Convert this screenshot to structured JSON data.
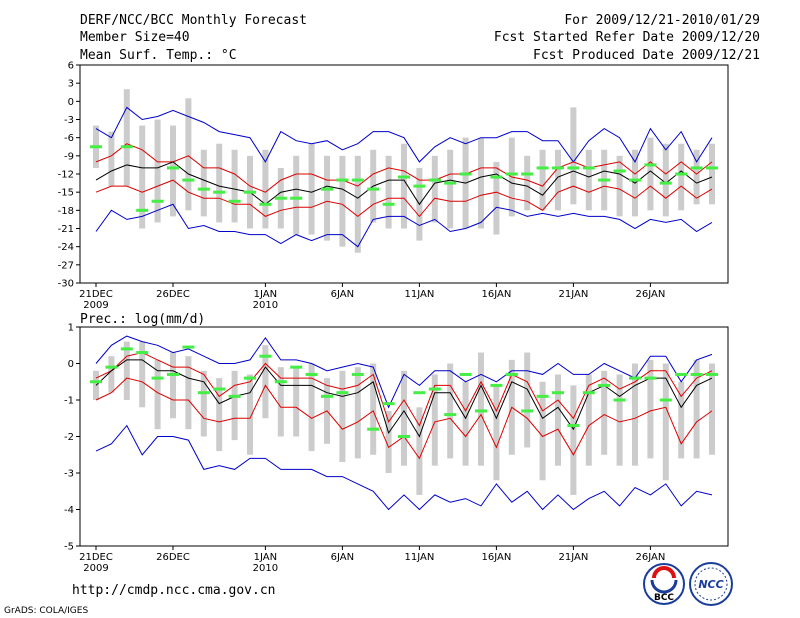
{
  "header": {
    "title": "DERF/NCC/BCC Monthly Forecast",
    "member_size": "Member Size=40",
    "variable": "Mean Surf. Temp.: °C",
    "period": "For 2009/12/21-2010/01/29",
    "started": "Fcst Started Refer Date 2009/12/20",
    "produced": "Fcst Produced Date 2009/12/21"
  },
  "footer": {
    "url": "http://cmdp.ncc.cma.gov.cn",
    "credit": "GrADS: COLA/IGES",
    "logo1_text": "BCC",
    "logo2_text": "NCC"
  },
  "colors": {
    "envelope": "#0000cc",
    "spread": "#dd0000",
    "mean": "#000000",
    "observed": "#44ee44",
    "range_bar": "#cccccc"
  },
  "chart_data": [
    {
      "type": "line",
      "name": "temperature",
      "ylabel": "Mean Surf. Temp.: °C",
      "ylim": [
        -30,
        6
      ],
      "yticks": [
        6,
        3,
        0,
        -3,
        -6,
        -9,
        -12,
        -15,
        -18,
        -21,
        -24,
        -27,
        -30
      ],
      "xtick_labels": [
        {
          "day": 0,
          "label": "21DEC",
          "sub": "2009"
        },
        {
          "day": 5,
          "label": "26DEC",
          "sub": ""
        },
        {
          "day": 11,
          "label": "1JAN",
          "sub": "2010"
        },
        {
          "day": 16,
          "label": "6JAN",
          "sub": ""
        },
        {
          "day": 21,
          "label": "11JAN",
          "sub": ""
        },
        {
          "day": 26,
          "label": "16JAN",
          "sub": ""
        },
        {
          "day": 31,
          "label": "21JAN",
          "sub": ""
        },
        {
          "day": 36,
          "label": "26JAN",
          "sub": ""
        }
      ],
      "days": 40,
      "series": [
        {
          "name": "max",
          "role": "envelope",
          "values": [
            -4.5,
            -6,
            -1,
            -3,
            -2.5,
            -1.5,
            -2.5,
            -3.5,
            -5,
            -5.5,
            -6,
            -10,
            -5,
            -6.5,
            -7,
            -6.5,
            -8,
            -7,
            -5,
            -5,
            -6,
            -10,
            -7.5,
            -6,
            -7,
            -6,
            -6,
            -5,
            -5,
            -6.5,
            -6.5,
            -10,
            -6.5,
            -4.5,
            -6,
            -10,
            -4.5,
            -8,
            -5,
            -10,
            -6
          ]
        },
        {
          "name": "upper",
          "role": "spread",
          "values": [
            -10,
            -9,
            -7,
            -8,
            -10,
            -10,
            -9,
            -11,
            -11,
            -12,
            -14,
            -15,
            -13,
            -12,
            -12,
            -13,
            -13,
            -14,
            -12,
            -11,
            -11.5,
            -13,
            -13,
            -12,
            -12,
            -11,
            -11,
            -12.5,
            -13,
            -14,
            -11,
            -10,
            -11,
            -10.5,
            -10,
            -12,
            -10,
            -12,
            -10,
            -12,
            -10
          ]
        },
        {
          "name": "mean",
          "role": "mean",
          "values": [
            -13,
            -11.5,
            -10.5,
            -11,
            -11,
            -10,
            -12,
            -13,
            -14,
            -14.5,
            -15,
            -17,
            -15,
            -14.5,
            -15,
            -14,
            -14.5,
            -16,
            -14,
            -13,
            -13,
            -17,
            -13.5,
            -13,
            -13.5,
            -12.5,
            -12,
            -13.5,
            -14,
            -15.5,
            -12.5,
            -11.5,
            -12.5,
            -11.5,
            -12,
            -13.5,
            -11.5,
            -13.5,
            -11.5,
            -13.5,
            -12.5
          ]
        },
        {
          "name": "lower",
          "role": "spread",
          "values": [
            -15,
            -14,
            -14,
            -15,
            -14,
            -13,
            -15,
            -16,
            -16,
            -17,
            -17,
            -19,
            -18,
            -17.5,
            -17.5,
            -16.5,
            -17,
            -19,
            -17,
            -16,
            -16,
            -19,
            -16,
            -16.5,
            -16.5,
            -15.5,
            -15,
            -16,
            -16.5,
            -18,
            -15,
            -14,
            -15,
            -14,
            -14.5,
            -16,
            -14,
            -16,
            -14,
            -16,
            -14.5
          ]
        },
        {
          "name": "min",
          "role": "envelope",
          "values": [
            -21.5,
            -18,
            -19.5,
            -19,
            -18,
            -17,
            -21,
            -20.5,
            -21.5,
            -21.5,
            -22,
            -22,
            -23.5,
            -22,
            -23,
            -22,
            -22,
            -24,
            -19.5,
            -19,
            -19,
            -20.5,
            -19.5,
            -21.5,
            -21,
            -20,
            -17.5,
            -18,
            -19,
            -18.5,
            -19,
            -18.5,
            -19,
            -19,
            -19.5,
            -21,
            -19.5,
            -20,
            -19.5,
            -21.5,
            -20
          ]
        },
        {
          "name": "observed",
          "role": "observed",
          "values": [
            -7.5,
            null,
            -7.5,
            -18,
            -16.5,
            -11,
            -13,
            -14.5,
            -15,
            -16.5,
            -15,
            -17,
            -16,
            -16,
            null,
            -14.5,
            -13,
            -13,
            -14.5,
            -17,
            -12.5,
            -14,
            -13,
            -13.5,
            -12,
            null,
            -12.5,
            -12,
            -12,
            -11,
            -11,
            -11,
            -11,
            -13,
            -11.5,
            -13,
            -10.5,
            -13.5,
            -12,
            -11,
            -11
          ]
        },
        {
          "name": "range_high",
          "role": "range",
          "values": [
            -4,
            -5,
            2,
            -4,
            -3,
            -4,
            0.5,
            -8,
            -7,
            -8,
            -9,
            -8,
            -11,
            -9,
            -7,
            -9,
            -9,
            -9,
            -8,
            -9,
            -7,
            -11,
            -9,
            -8,
            -6,
            -6,
            -10,
            -6,
            -9,
            -8,
            -8,
            -1,
            -8,
            -8,
            -9,
            -8,
            -6,
            -7,
            -7,
            -8,
            -7
          ]
        },
        {
          "name": "range_low",
          "role": "range",
          "values": [
            -11,
            -14,
            -14,
            -21,
            -20,
            -19,
            -18,
            -19,
            -20,
            -20,
            -21,
            -21,
            -21,
            -22,
            -22,
            -23,
            -24,
            -25,
            -20,
            -21,
            -21,
            -23,
            -20,
            -21,
            -21,
            -21,
            -22,
            -19,
            -18,
            -18,
            -18,
            -17,
            -18,
            -18,
            -19,
            -19,
            -18,
            -19,
            -18,
            -17,
            -17
          ]
        }
      ]
    },
    {
      "type": "line",
      "name": "precipitation",
      "ylabel": "Prec.: log(mm/d)",
      "ylim": [
        -5,
        1
      ],
      "yticks": [
        1,
        0,
        -1,
        -2,
        -3,
        -4,
        -5
      ],
      "xtick_labels": [
        {
          "day": 0,
          "label": "21DEC",
          "sub": "2009"
        },
        {
          "day": 5,
          "label": "26DEC",
          "sub": ""
        },
        {
          "day": 11,
          "label": "1JAN",
          "sub": "2010"
        },
        {
          "day": 16,
          "label": "6JAN",
          "sub": ""
        },
        {
          "day": 21,
          "label": "11JAN",
          "sub": ""
        },
        {
          "day": 26,
          "label": "16JAN",
          "sub": ""
        },
        {
          "day": 31,
          "label": "21JAN",
          "sub": ""
        },
        {
          "day": 36,
          "label": "26JAN",
          "sub": ""
        }
      ],
      "days": 40,
      "series": [
        {
          "name": "max",
          "role": "envelope",
          "values": [
            0,
            0.5,
            0.75,
            0.6,
            0.5,
            0.3,
            0.4,
            0.2,
            0,
            0,
            0.1,
            0.7,
            0.1,
            0.1,
            0,
            -0.2,
            -0.1,
            0,
            -0.1,
            -1.2,
            -0.3,
            -0.6,
            -0.2,
            -0.2,
            -0.5,
            -0.3,
            -0.5,
            -0.2,
            -0.2,
            -0.3,
            0,
            -0.3,
            -0.3,
            0,
            -0.2,
            -0.4,
            0.2,
            0.2,
            -0.5,
            0.1,
            0.25
          ]
        },
        {
          "name": "upper",
          "role": "spread",
          "values": [
            -0.4,
            -0.2,
            0.2,
            0.3,
            0.1,
            -0.1,
            -0.1,
            -0.3,
            -0.9,
            -0.6,
            -0.5,
            0,
            -0.4,
            -0.4,
            -0.4,
            -0.6,
            -0.7,
            -0.6,
            -0.3,
            -1.6,
            -1,
            -1.7,
            -0.6,
            -0.6,
            -1.3,
            -0.5,
            -1.3,
            -0.3,
            -0.5,
            -1.3,
            -1,
            -1.5,
            -0.6,
            -0.4,
            -0.7,
            -0.5,
            -0.2,
            -0.2,
            -0.9,
            -0.4,
            -0.2
          ]
        },
        {
          "name": "mean",
          "role": "mean",
          "values": [
            -0.6,
            -0.2,
            0.1,
            0.1,
            -0.2,
            -0.2,
            -0.4,
            -0.5,
            -1.1,
            -0.9,
            -0.8,
            -0.1,
            -0.6,
            -0.6,
            -0.6,
            -0.8,
            -0.9,
            -0.8,
            -0.5,
            -1.9,
            -1.3,
            -2,
            -0.8,
            -0.8,
            -1.5,
            -0.6,
            -1.5,
            -0.5,
            -0.7,
            -1.5,
            -1.2,
            -1.8,
            -0.8,
            -0.6,
            -0.9,
            -0.6,
            -0.4,
            -0.4,
            -1.2,
            -0.6,
            -0.4
          ]
        },
        {
          "name": "lower",
          "role": "spread",
          "values": [
            -1,
            -0.8,
            -0.4,
            -0.5,
            -0.8,
            -1,
            -1,
            -1.5,
            -1.6,
            -1.5,
            -1.5,
            -0.6,
            -1.2,
            -1.2,
            -1.5,
            -1.3,
            -1.8,
            -1.6,
            -1.3,
            -2.3,
            -2,
            -2.6,
            -1.6,
            -1.5,
            -2,
            -1.4,
            -2.3,
            -1.2,
            -1.5,
            -2,
            -1.8,
            -2.5,
            -1.7,
            -1.4,
            -1.6,
            -1.5,
            -1.3,
            -1.2,
            -2.2,
            -1.6,
            -1.3
          ]
        },
        {
          "name": "min",
          "role": "envelope",
          "values": [
            -2.4,
            -2.2,
            -1.7,
            -2.5,
            -2,
            -2,
            -2.1,
            -2.9,
            -2.8,
            -2.9,
            -2.6,
            -2.6,
            -2.9,
            -2.9,
            -2.9,
            -3.1,
            -3.1,
            -3.3,
            -3.5,
            -4,
            -3.6,
            -4,
            -3.6,
            -3.8,
            -3.7,
            -3.9,
            -3.3,
            -3.8,
            -3.5,
            -4,
            -3.6,
            -4,
            -3.7,
            -3.5,
            -3.9,
            -3.4,
            -3.6,
            -3.3,
            -3.9,
            -3.5,
            -3.6
          ]
        },
        {
          "name": "observed",
          "role": "observed",
          "values": [
            -0.5,
            -0.1,
            0.4,
            0.3,
            -0.4,
            -0.3,
            0.45,
            -0.8,
            -0.7,
            -0.9,
            -0.4,
            0.2,
            -0.5,
            -0.1,
            -0.3,
            -0.9,
            -0.8,
            -0.3,
            -1.8,
            -1.1,
            -2,
            -0.8,
            -0.7,
            -1.4,
            -0.3,
            -1.3,
            -0.6,
            -0.3,
            -1.3,
            -0.9,
            -0.8,
            -1.7,
            -0.8,
            -0.6,
            -1,
            -0.4,
            -0.4,
            -1,
            -0.3,
            -0.3,
            -0.3
          ]
        },
        {
          "name": "range_high",
          "role": "range",
          "values": [
            -0.2,
            0.2,
            0.6,
            0.6,
            0.1,
            0.3,
            0.2,
            -0.2,
            -0.4,
            -0.2,
            -0.3,
            0.5,
            -0.1,
            -0.1,
            0,
            -0.4,
            -0.2,
            -0.1,
            0,
            -1.3,
            -0.2,
            -1.2,
            -0.3,
            0,
            -0.5,
            0.3,
            -0.6,
            0.1,
            0.3,
            -0.5,
            -0.3,
            -0.6,
            -0.3,
            -0.2,
            -0.3,
            0,
            0.1,
            0,
            -0.5,
            0.1,
            0
          ]
        },
        {
          "name": "range_low",
          "role": "range",
          "values": [
            -1,
            -0.8,
            -1,
            -1.2,
            -1.8,
            -1.5,
            -1.8,
            -2,
            -2.4,
            -2.1,
            -2.5,
            -1.5,
            -2,
            -2,
            -2.4,
            -2.2,
            -2.7,
            -2.6,
            -2.5,
            -3,
            -2.8,
            -3.6,
            -2.8,
            -2.6,
            -2.8,
            -2.8,
            -3.2,
            -2.5,
            -2.3,
            -3.2,
            -2.8,
            -3.6,
            -2.8,
            -2.5,
            -2.8,
            -2.8,
            -2.6,
            -3.2,
            -2.6,
            -2.6,
            -2.5
          ]
        }
      ]
    }
  ]
}
